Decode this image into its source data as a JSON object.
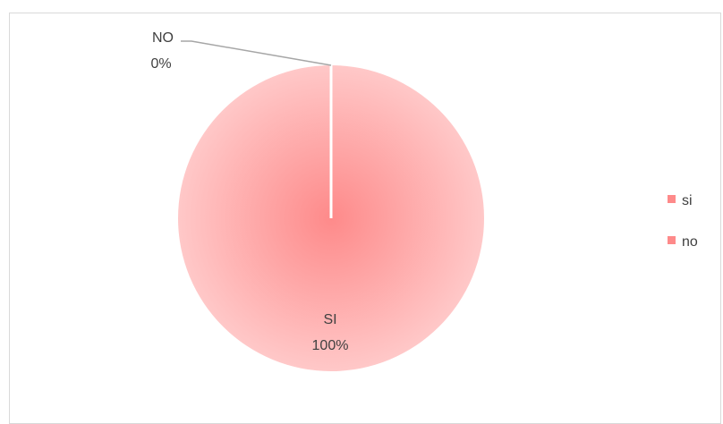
{
  "chart_data": {
    "type": "pie",
    "categories": [
      "si",
      "no"
    ],
    "values": [
      100,
      0
    ],
    "data_labels": [
      {
        "category": "SI",
        "percent": "100%"
      },
      {
        "category": "NO",
        "percent": "0%"
      }
    ],
    "legend": {
      "entries": [
        "si",
        "no"
      ],
      "placement": "right"
    },
    "colors": {
      "slice": "#fe8a8a",
      "slice_edge": "#ffc8c8",
      "separator": "#ffffff",
      "leader": "#a6a6a6",
      "frame": "#d9d9d9"
    }
  }
}
